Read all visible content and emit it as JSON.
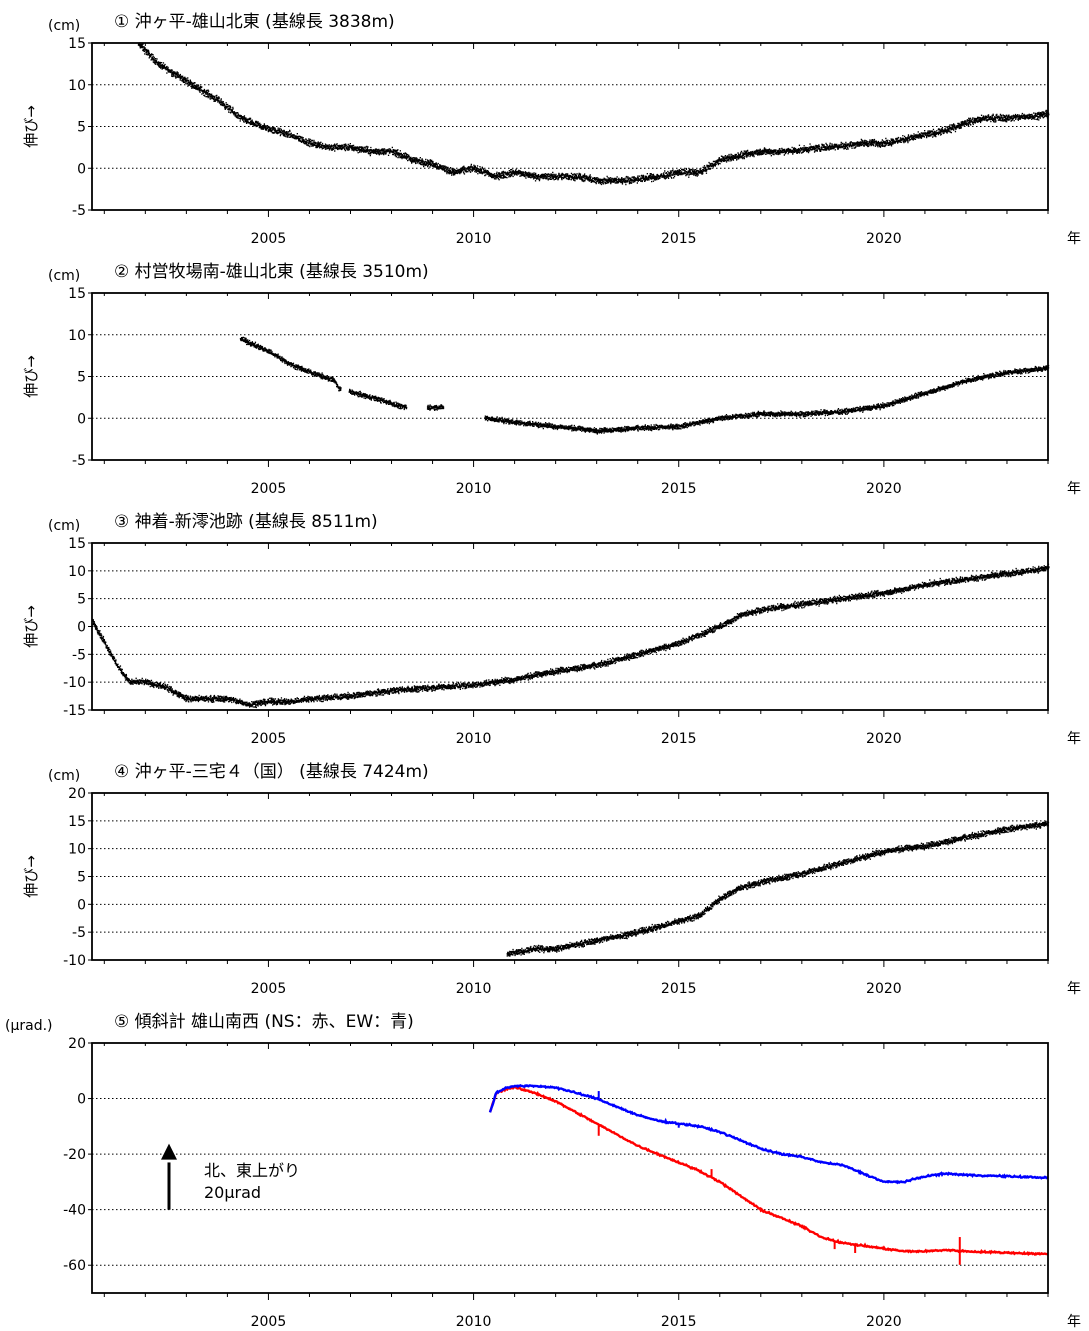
{
  "figure": {
    "year_unit": "年"
  },
  "annotation": {
    "line1": "北、東上がり",
    "line2": "20μrad"
  },
  "chart_data": [
    {
      "type": "scatter",
      "title": "① 沖ヶ平-雄山北東 (基線長 3838m)",
      "unit": "(cm)",
      "ylabel": "伸び→",
      "xlabel": "年",
      "xlim": [
        2000.7,
        2024.0
      ],
      "ylim": [
        -5,
        15
      ],
      "yticks": [
        -5,
        0,
        5,
        10,
        15
      ],
      "xticks": [
        2005,
        2010,
        2015,
        2020
      ],
      "grid": "horizontal-dotted",
      "series": [
        {
          "x": [
            2001.8,
            2002.3,
            2002.8,
            2003.3,
            2003.8,
            2004.3,
            2004.8,
            2005.5,
            2006.0,
            2006.5,
            2007.0,
            2007.5,
            2008.0,
            2008.5,
            2009.0,
            2009.5,
            2010.0,
            2010.5,
            2011.0,
            2011.5,
            2012.0,
            2012.5,
            2013.0,
            2013.5,
            2014.0,
            2014.5,
            2015.0,
            2015.5,
            2016.0,
            2016.5,
            2017.0,
            2017.5,
            2018.0,
            2018.5,
            2019.0,
            2019.5,
            2020.0,
            2020.5,
            2021.0,
            2021.5,
            2022.0,
            2022.5,
            2023.0,
            2023.5,
            2024.0
          ],
          "y": [
            15,
            12.5,
            11,
            9.5,
            8,
            6,
            5,
            4,
            3,
            2.5,
            2.5,
            2,
            2,
            1,
            0.5,
            -0.5,
            0,
            -1,
            -0.5,
            -1,
            -1,
            -1,
            -1.5,
            -1.5,
            -1.3,
            -1,
            -0.5,
            -0.5,
            1,
            1.5,
            2,
            2,
            2.2,
            2.5,
            2.7,
            3,
            3,
            3.5,
            4,
            4.5,
            5.5,
            6,
            6,
            6.2,
            6.5
          ]
        }
      ]
    },
    {
      "type": "scatter",
      "title": "② 村営牧場南-雄山北東 (基線長 3510m)",
      "unit": "(cm)",
      "ylabel": "伸び→",
      "xlabel": "年",
      "xlim": [
        2000.7,
        2024.0
      ],
      "ylim": [
        -5,
        15
      ],
      "yticks": [
        -5,
        0,
        5,
        10,
        15
      ],
      "xticks": [
        2005,
        2010,
        2015,
        2020
      ],
      "grid": "horizontal-dotted",
      "series": [
        {
          "x": [
            2004.3,
            2005.0,
            2005.5,
            2006.0,
            2006.6,
            2006.7,
            2007.5,
            2008.3,
            2008.9,
            2009.2,
            2010.3,
            2011.0,
            2012.0,
            2013.0,
            2014.0,
            2015.0,
            2016.0,
            2017.0,
            2018.0,
            2019.0,
            2020.0,
            2021.0,
            2022.0,
            2023.0,
            2024.0
          ],
          "y": [
            9.5,
            8,
            6.5,
            5.5,
            4.5,
            3.5,
            2.5,
            1.3,
            1.3,
            1.3,
            0,
            -0.5,
            -1,
            -1.5,
            -1.2,
            -1,
            0,
            0.5,
            0.5,
            0.8,
            1.5,
            3,
            4.5,
            5.5,
            6
          ]
        }
      ]
    },
    {
      "type": "scatter",
      "title": "③ 神着-新澪池跡 (基線長 8511m)",
      "unit": "(cm)",
      "ylabel": "伸び→",
      "xlabel": "年",
      "xlim": [
        2000.7,
        2024.0
      ],
      "ylim": [
        -15,
        15
      ],
      "yticks": [
        -15,
        -10,
        -5,
        0,
        5,
        10,
        15
      ],
      "xticks": [
        2005,
        2010,
        2015,
        2020
      ],
      "grid": "horizontal-dotted",
      "series": [
        {
          "x": [
            2000.7,
            2001.0,
            2001.3,
            2001.6,
            2002.0,
            2002.5,
            2003.0,
            2003.5,
            2004.0,
            2004.5,
            2005.0,
            2005.5,
            2006.0,
            2007.0,
            2008.0,
            2009.0,
            2010.0,
            2011.0,
            2012.0,
            2013.0,
            2014.0,
            2015.0,
            2016.0,
            2016.5,
            2017.0,
            2018.0,
            2019.0,
            2020.0,
            2021.0,
            2022.0,
            2023.0,
            2024.0
          ],
          "y": [
            1,
            -3,
            -7,
            -10,
            -10,
            -11,
            -13,
            -13,
            -13,
            -14,
            -13.5,
            -13.5,
            -13,
            -12.5,
            -11.5,
            -11,
            -10.5,
            -9.5,
            -8,
            -7,
            -5,
            -3,
            0,
            2,
            3,
            4,
            5,
            6,
            7.5,
            8.5,
            9.5,
            10.5
          ]
        }
      ]
    },
    {
      "type": "scatter",
      "title": "④ 沖ヶ平-三宅４（国） (基線長 7424m)",
      "unit": "(cm)",
      "ylabel": "伸び→",
      "xlabel": "年",
      "xlim": [
        2000.7,
        2024.0
      ],
      "ylim": [
        -10,
        20
      ],
      "yticks": [
        -10,
        -5,
        0,
        5,
        10,
        15,
        20
      ],
      "xticks": [
        2005,
        2010,
        2015,
        2020
      ],
      "grid": "horizontal-dotted",
      "series": [
        {
          "x": [
            2010.8,
            2011.5,
            2012.0,
            2013.0,
            2014.0,
            2015.0,
            2015.5,
            2016.0,
            2016.5,
            2017.0,
            2018.0,
            2019.0,
            2020.0,
            2021.0,
            2022.0,
            2023.0,
            2024.0
          ],
          "y": [
            -9,
            -8,
            -8,
            -6.5,
            -5,
            -3,
            -2,
            1,
            3,
            4,
            5.5,
            7.5,
            9.5,
            10.5,
            12,
            13.5,
            14.5
          ]
        }
      ]
    },
    {
      "type": "line",
      "title": "⑤ 傾斜計 雄山南西 (NS：赤、EW：青)",
      "unit": "(μrad.)",
      "ylabel": "",
      "xlabel": "年",
      "xlim": [
        2000.7,
        2024.0
      ],
      "ylim": [
        -70,
        20
      ],
      "yticks": [
        -60,
        -40,
        -20,
        0,
        20
      ],
      "xticks": [
        2005,
        2010,
        2015,
        2020
      ],
      "grid": "horizontal-dotted",
      "series": [
        {
          "color": "#ff0000",
          "x": [
            2010.4,
            2010.55,
            2010.8,
            2011.0,
            2011.5,
            2012.0,
            2012.5,
            2013.0,
            2013.5,
            2014.0,
            2014.5,
            2015.0,
            2015.5,
            2016.0,
            2016.5,
            2017.0,
            2017.5,
            2018.0,
            2018.5,
            2019.0,
            2019.5,
            2020.0,
            2020.5,
            2021.0,
            2021.5,
            2022.0,
            2023.0,
            2024.0
          ],
          "y": [
            -5,
            2,
            3.5,
            4,
            2,
            -1,
            -5,
            -9,
            -13,
            -17,
            -20,
            -23,
            -26,
            -30,
            -35,
            -40,
            -43,
            -46,
            -50,
            -52,
            -53,
            -54,
            -55,
            -55,
            -54.5,
            -55,
            -55.5,
            -56
          ]
        },
        {
          "color": "#0000ff",
          "x": [
            2010.4,
            2010.55,
            2010.8,
            2011.0,
            2011.5,
            2012.0,
            2012.5,
            2013.0,
            2013.5,
            2014.0,
            2014.5,
            2015.0,
            2015.5,
            2016.0,
            2016.5,
            2017.0,
            2017.5,
            2018.0,
            2018.5,
            2019.0,
            2019.5,
            2020.0,
            2020.5,
            2021.0,
            2021.5,
            2022.0,
            2023.0,
            2024.0
          ],
          "y": [
            -5,
            2,
            4,
            4.5,
            4.5,
            4,
            2,
            0,
            -3,
            -6,
            -8,
            -9,
            -10,
            -12,
            -15,
            -18,
            -20,
            -21,
            -23,
            -24,
            -27,
            -30,
            -30,
            -28,
            -27,
            -27.5,
            -28,
            -28.5
          ]
        }
      ]
    }
  ]
}
